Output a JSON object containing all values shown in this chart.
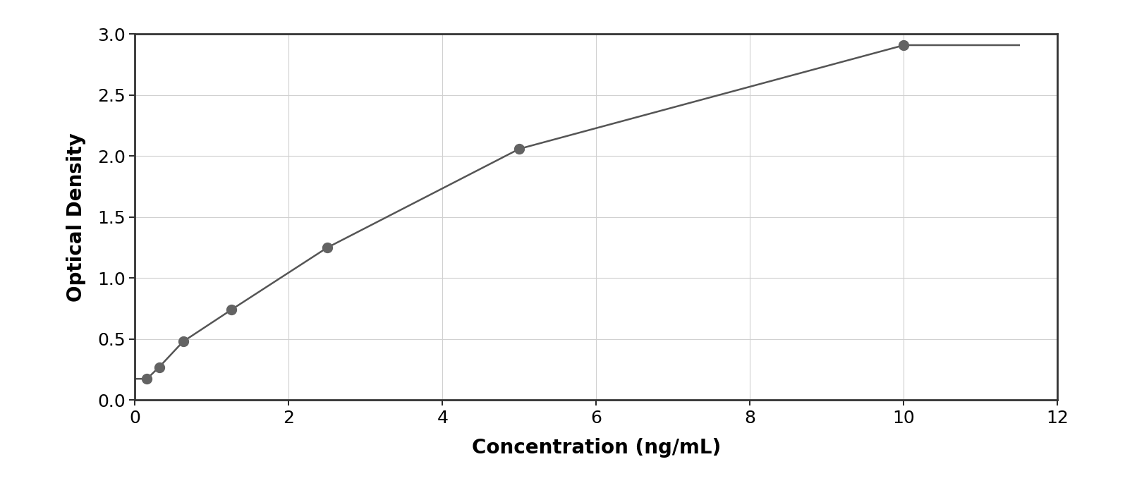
{
  "x_data": [
    0.156,
    0.313,
    0.625,
    1.25,
    2.5,
    5.0,
    10.0
  ],
  "y_data": [
    0.175,
    0.27,
    0.48,
    0.74,
    1.25,
    2.06,
    2.91
  ],
  "xlabel": "Concentration (ng/mL)",
  "ylabel": "Optical Density",
  "xlim": [
    0,
    12
  ],
  "ylim": [
    0,
    3
  ],
  "xticks": [
    0,
    2,
    4,
    6,
    8,
    10,
    12
  ],
  "yticks": [
    0,
    0.5,
    1.0,
    1.5,
    2.0,
    2.5,
    3.0
  ],
  "dot_color": "#636363",
  "line_color": "#555555",
  "grid_color": "#d0d0d0",
  "background_color": "#ffffff",
  "outer_background": "#ffffff",
  "border_color": "#333333",
  "dot_size": 100,
  "line_width": 1.8,
  "xlabel_fontsize": 20,
  "ylabel_fontsize": 20,
  "tick_fontsize": 18,
  "xlabel_fontweight": "bold",
  "ylabel_fontweight": "bold"
}
